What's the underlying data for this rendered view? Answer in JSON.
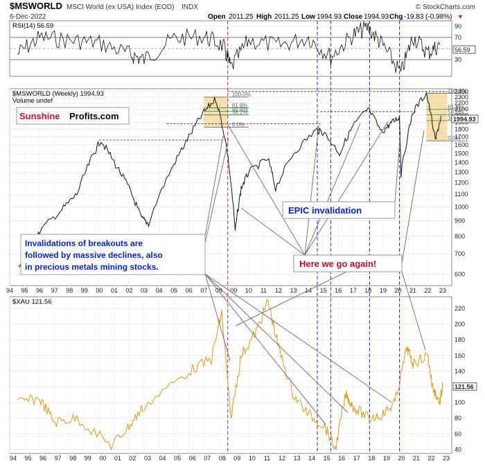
{
  "header": {
    "symbol": "$MSWORLD",
    "description": "MSCI World (ex USA) Index (EOD)",
    "exchange": "INDX",
    "date": "6-Dec-2022",
    "open_label": "Open",
    "open": "2011.25",
    "high_label": "High",
    "high": "2011.25",
    "low_label": "Low",
    "low": "1994.93",
    "close_label": "Close",
    "close": "1994.93",
    "chg_label": "Chg",
    "chg": "-19.83 (-0.98%)",
    "watermark": "© StockCharts.com"
  },
  "brand": {
    "part1": "Sunshine",
    "part2": "Profits.com"
  },
  "annotations": {
    "invalidations": [
      "Invalidations of breakouts are",
      "followed by massive declines, also",
      "in precious metals mining stocks."
    ],
    "here_again": "Here we go again!",
    "epic": "EPIC invalidation"
  },
  "colors": {
    "gold": "#d9a227",
    "fib_box": "#f5c97a",
    "vline_blue": "#1e2bd6",
    "vline_purple": "#b01f9a",
    "up": "#000000",
    "down": "#c8102e"
  },
  "chart_data": [
    {
      "type": "line",
      "label": "RSI(14) 56.59",
      "last": "56.59",
      "ylim": [
        0,
        100
      ],
      "yticks": [
        30,
        50,
        70,
        90
      ],
      "x": [
        1994.5,
        1996,
        1998,
        2000,
        2002,
        2003,
        2005,
        2007,
        2008.3,
        2008.8,
        2010,
        2012,
        2014,
        2015.5,
        2017,
        2018,
        2019,
        2020.2,
        2021,
        2022,
        2022.8
      ],
      "values": [
        40,
        70,
        65,
        60,
        40,
        30,
        68,
        72,
        55,
        15,
        65,
        55,
        70,
        35,
        75,
        88,
        55,
        5,
        72,
        42,
        56.59
      ]
    },
    {
      "type": "line",
      "label": "$MSWORLD (Weekly) 1994.93",
      "sublabel": "Volume undef",
      "last": "1994.93",
      "ylim": [
        550,
        2450
      ],
      "yticks": [
        600,
        700,
        800,
        900,
        1000,
        1100,
        1200,
        1300,
        1400,
        1500,
        1600,
        1700,
        1800,
        1900,
        2000,
        2100,
        2200,
        2300,
        2400
      ],
      "x": [
        1994.6,
        1995.2,
        1996,
        1997.5,
        1998.5,
        1999.5,
        2000.1,
        2001,
        2002,
        2002.8,
        2003.3,
        2005,
        2006,
        2007,
        2007.8,
        2008.5,
        2009.1,
        2009.5,
        2010,
        2011.3,
        2011.8,
        2013,
        2014.5,
        2015,
        2016.1,
        2017,
        2018,
        2018.9,
        2019.5,
        2020.1,
        2020.2,
        2021,
        2021.9,
        2022.5,
        2022.9
      ],
      "values": [
        640,
        610,
        830,
        980,
        1100,
        1450,
        1660,
        1400,
        1150,
        920,
        880,
        1380,
        1700,
        2050,
        2270,
        1600,
        830,
        1150,
        1300,
        1440,
        1150,
        1500,
        1790,
        1760,
        1500,
        1850,
        2100,
        1760,
        1880,
        1980,
        1280,
        2050,
        2370,
        1650,
        1994.93
      ],
      "fib_levels": [
        "100.0%",
        "61.8%",
        "50.0%",
        "38.2%",
        "0.0%"
      ],
      "fib_levels_right": [
        "100.0%",
        "61.8%",
        "50.0%",
        "38.2%",
        "0.0%"
      ]
    },
    {
      "type": "line",
      "label": "$XAU 121.56",
      "last": "121.56",
      "ylim": [
        35,
        235
      ],
      "yticks": [
        40,
        60,
        80,
        100,
        120,
        140,
        160,
        180,
        200,
        220
      ],
      "x": [
        1994.5,
        1996,
        1997,
        1998.5,
        2000.8,
        2002,
        2003,
        2006,
        2007.5,
        2008.2,
        2008.8,
        2009.5,
        2010.5,
        2011.3,
        2012,
        2013,
        2014,
        2015.1,
        2015.8,
        2016.5,
        2017,
        2018,
        2019,
        2019.8,
        2020.6,
        2021,
        2022,
        2022.3,
        2022.8,
        2023
      ],
      "values": [
        100,
        105,
        75,
        80,
        45,
        70,
        95,
        140,
        155,
        215,
        80,
        160,
        190,
        230,
        170,
        110,
        85,
        70,
        40,
        110,
        95,
        80,
        85,
        100,
        170,
        150,
        160,
        120,
        100,
        121.56
      ]
    }
  ],
  "xaxis": {
    "labels": [
      "94",
      "95",
      "96",
      "97",
      "98",
      "99",
      "00",
      "01",
      "02",
      "03",
      "04",
      "05",
      "06",
      "07",
      "08",
      "09",
      "10",
      "11",
      "12",
      "13",
      "14",
      "15",
      "16",
      "17",
      "18",
      "19",
      "20",
      "21",
      "22",
      "23"
    ]
  }
}
